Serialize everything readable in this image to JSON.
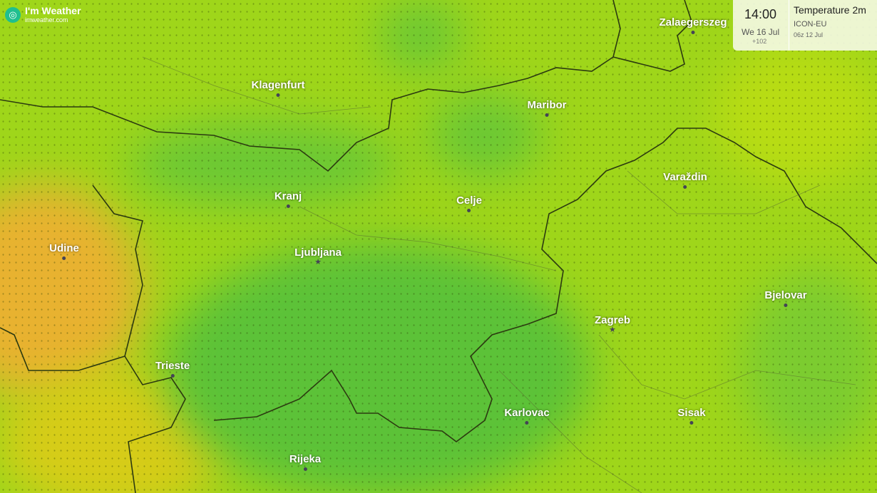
{
  "brand": {
    "name": "I'm Weather",
    "url": "imweather.com"
  },
  "panel": {
    "time": "14:00",
    "date": "We 16 Jul",
    "offset": "+102",
    "layer": "Temperature 2m",
    "model": "ICON-EU",
    "run": "06z 12 Jul",
    "partially_hidden_city": "Zalaegerszeg"
  },
  "colors": {
    "warm": "#e8b230",
    "yellow": "#d6dc10",
    "lime": "#9fd61a",
    "green": "#4cbe38"
  },
  "cities": [
    {
      "name": "Klagenfurt",
      "marker": "dot"
    },
    {
      "name": "Maribor",
      "marker": "dot"
    },
    {
      "name": "Varaždin",
      "marker": "dot"
    },
    {
      "name": "Kranj",
      "marker": "dot"
    },
    {
      "name": "Celje",
      "marker": "dot"
    },
    {
      "name": "Udine",
      "marker": "dot"
    },
    {
      "name": "Ljubljana",
      "marker": "star"
    },
    {
      "name": "Bjelovar",
      "marker": "dot"
    },
    {
      "name": "Zagreb",
      "marker": "star"
    },
    {
      "name": "Trieste",
      "marker": "dot"
    },
    {
      "name": "Karlovac",
      "marker": "dot"
    },
    {
      "name": "Sisak",
      "marker": "dot"
    },
    {
      "name": "Rijeka",
      "marker": "dot"
    }
  ]
}
